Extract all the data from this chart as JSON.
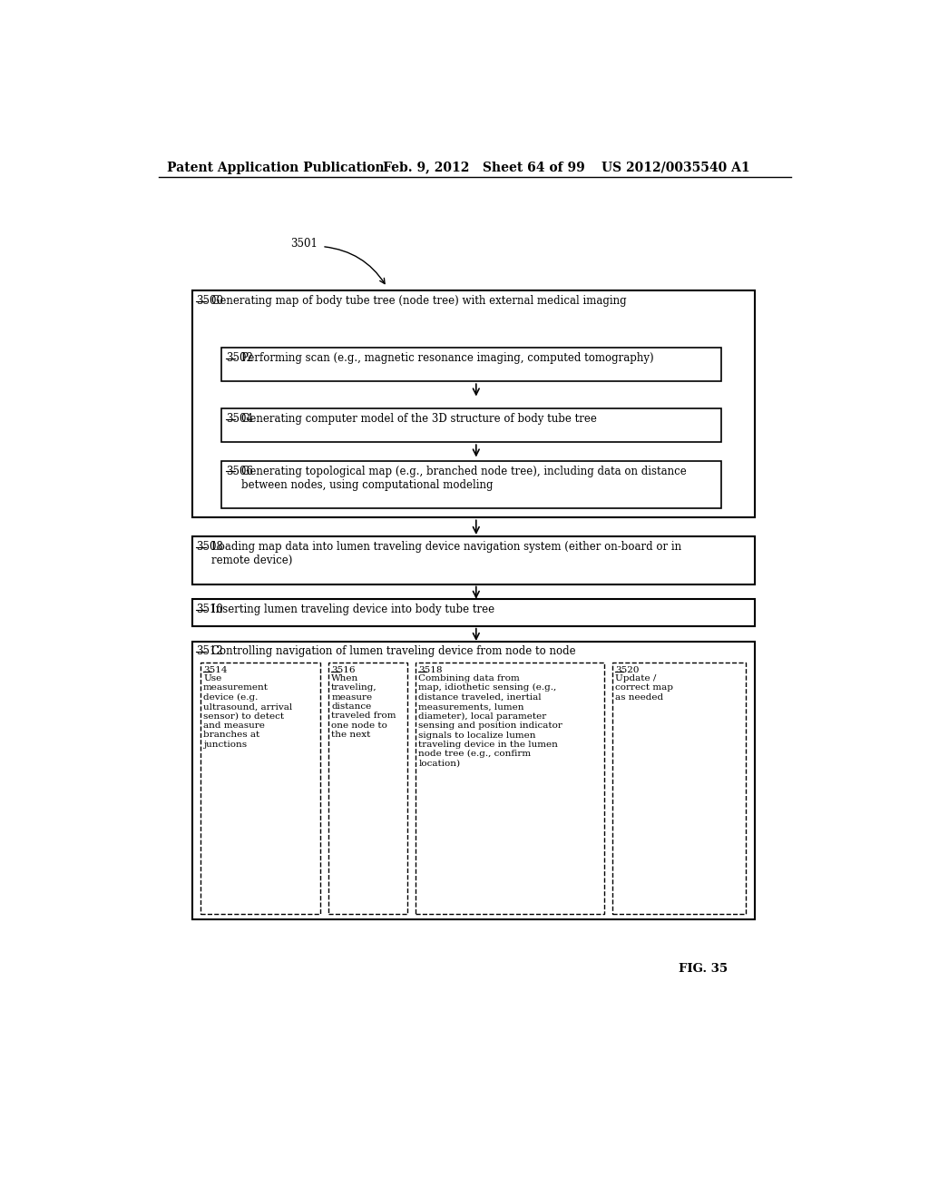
{
  "header_left": "Patent Application Publication",
  "header_mid": "Feb. 9, 2012   Sheet 64 of 99",
  "header_right": "US 2012/0035540 A1",
  "fig_label": "FIG. 35",
  "label_3501": "3501",
  "box3500_label": "3500",
  "box3500_text": "Generating map of body tube tree (node tree) with external medical imaging",
  "box3502_label": "3502",
  "box3502_text": "Performing scan (e.g., magnetic resonance imaging, computed tomography)",
  "box3504_label": "3504",
  "box3504_text": "Generating computer model of the 3D structure of body tube tree",
  "box3506_label": "3506",
  "box3506_text": "Generating topological map (e.g., branched node tree), including data on distance\nbetween nodes, using computational modeling",
  "box3508_label": "3508",
  "box3508_text": "Loading map data into lumen traveling device navigation system (either on-board or in\nremote device)",
  "box3510_label": "3510",
  "box3510_text": "Inserting lumen traveling device into body tube tree",
  "box3512_label": "3512",
  "box3512_text": "Controlling navigation of lumen traveling device from node to node",
  "box3514_label": "3514",
  "box3514_text": "Use\nmeasurement\ndevice (e.g.\nultrasound, arrival\nsensor) to detect\nand measure\nbranches at\njunctions",
  "box3516_label": "3516",
  "box3516_text": "When\ntraveling,\nmeasure\ndistance\ntraveled from\none node to\nthe next",
  "box3518_label": "3518",
  "box3518_text": "Combining data from\nmap, idiothetic sensing (e.g.,\ndistance traveled, inertial\nmeasurements, lumen\ndiameter), local parameter\nsensing and position indicator\nsignals to localize lumen\ntraveling device in the lumen\nnode tree (e.g., confirm\nlocation)",
  "box3520_label": "3520",
  "box3520_text": "Update /\ncorrect map\nas needed",
  "background_color": "#ffffff",
  "text_color": "#000000",
  "font_size_header": 10,
  "font_size_body": 8.5,
  "font_size_small": 7.5
}
